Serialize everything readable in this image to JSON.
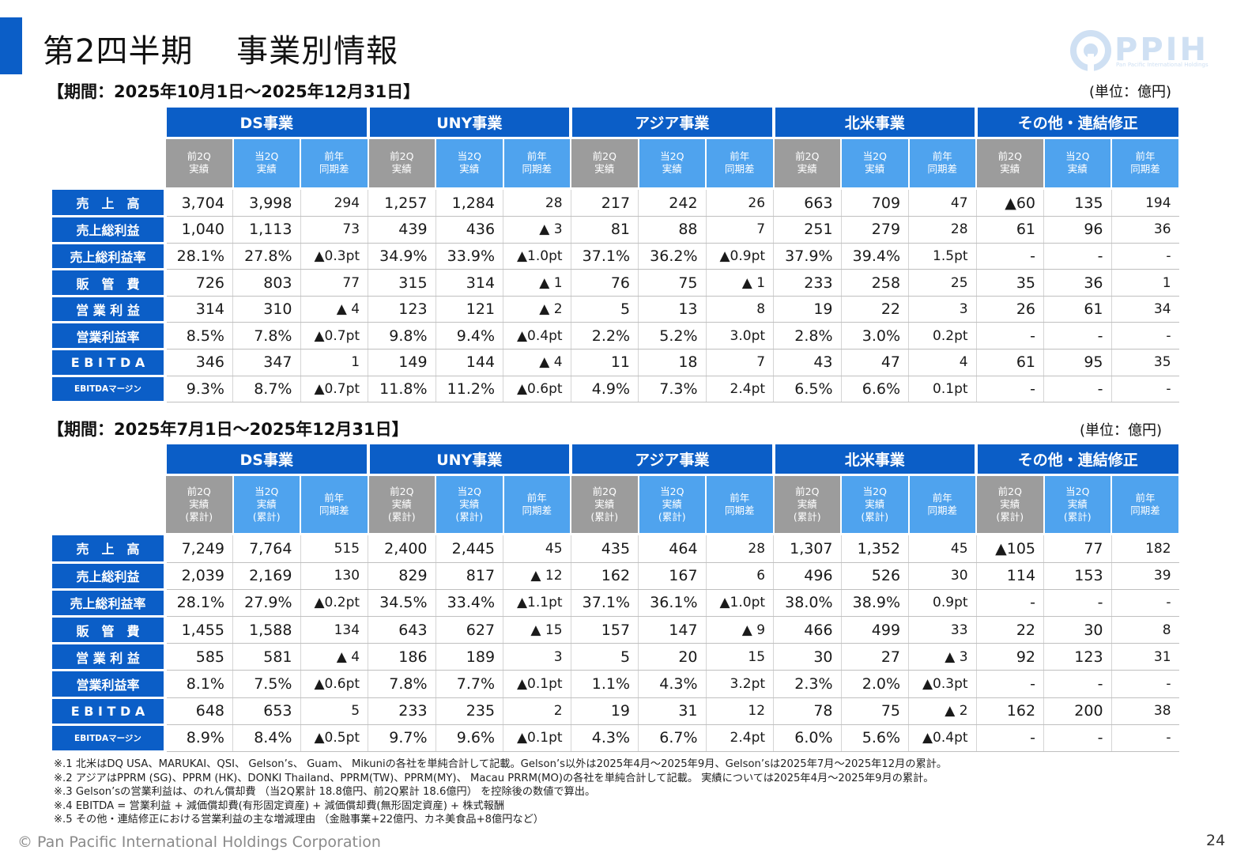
{
  "title": "第2四半期　 事業別情報",
  "logo": {
    "text": "PPIH",
    "sub": "Pan Pacific International Holdings"
  },
  "colors": {
    "accent": "#0b5ec7",
    "prev_header": "#9c9c9c",
    "curr_header": "#4fa3ee"
  },
  "segments": [
    "DS事業",
    "UNY事業",
    "アジア事業",
    "北米事業",
    "その他・連結修正"
  ],
  "tables": [
    {
      "period": "【期間：2025年10月1日～2025年12月31日】",
      "unit": "(単位：億円)",
      "subheaders": [
        "前2Q\n実績",
        "当2Q\n実績",
        "前年\n同期差"
      ],
      "rows": [
        {
          "label": "売　上　高",
          "small": false,
          "values": [
            "3,704",
            "3,998",
            "294",
            "1,257",
            "1,284",
            "28",
            "217",
            "242",
            "26",
            "663",
            "709",
            "47",
            "▲60",
            "135",
            "194"
          ]
        },
        {
          "label": "売上総利益",
          "small": false,
          "values": [
            "1,040",
            "1,113",
            "73",
            "439",
            "436",
            "▲ 3",
            "81",
            "88",
            "7",
            "251",
            "279",
            "28",
            "61",
            "96",
            "36"
          ]
        },
        {
          "label": "売上総利益率",
          "small": false,
          "values": [
            "28.1%",
            "27.8%",
            "▲0.3pt",
            "34.9%",
            "33.9%",
            "▲1.0pt",
            "37.1%",
            "36.2%",
            "▲0.9pt",
            "37.9%",
            "39.4%",
            "1.5pt",
            "-",
            "-",
            "-"
          ]
        },
        {
          "label": "販　管　費",
          "small": false,
          "values": [
            "726",
            "803",
            "77",
            "315",
            "314",
            "▲ 1",
            "76",
            "75",
            "▲ 1",
            "233",
            "258",
            "25",
            "35",
            "36",
            "1"
          ]
        },
        {
          "label": "営 業 利 益",
          "small": false,
          "values": [
            "314",
            "310",
            "▲ 4",
            "123",
            "121",
            "▲ 2",
            "5",
            "13",
            "8",
            "19",
            "22",
            "3",
            "26",
            "61",
            "34"
          ]
        },
        {
          "label": "営業利益率",
          "small": false,
          "values": [
            "8.5%",
            "7.8%",
            "▲0.7pt",
            "9.8%",
            "9.4%",
            "▲0.4pt",
            "2.2%",
            "5.2%",
            "3.0pt",
            "2.8%",
            "3.0%",
            "0.2pt",
            "-",
            "-",
            "-"
          ]
        },
        {
          "label": "E B I T D A",
          "small": false,
          "values": [
            "346",
            "347",
            "1",
            "149",
            "144",
            "▲ 4",
            "11",
            "18",
            "7",
            "43",
            "47",
            "4",
            "61",
            "95",
            "35"
          ]
        },
        {
          "label": "EBITDAマージン",
          "small": true,
          "values": [
            "9.3%",
            "8.7%",
            "▲0.7pt",
            "11.8%",
            "11.2%",
            "▲0.6pt",
            "4.9%",
            "7.3%",
            "2.4pt",
            "6.5%",
            "6.6%",
            "0.1pt",
            "-",
            "-",
            "-"
          ]
        }
      ]
    },
    {
      "period": "【期間：2025年7月1日～2025年12月31日】",
      "unit": "(単位：億円)",
      "subheaders": [
        "前2Q\n実績\n(累計)",
        "当2Q\n実績\n(累計)",
        "前年\n同期差"
      ],
      "rows": [
        {
          "label": "売　上　高",
          "small": false,
          "values": [
            "7,249",
            "7,764",
            "515",
            "2,400",
            "2,445",
            "45",
            "435",
            "464",
            "28",
            "1,307",
            "1,352",
            "45",
            "▲105",
            "77",
            "182"
          ]
        },
        {
          "label": "売上総利益",
          "small": false,
          "values": [
            "2,039",
            "2,169",
            "130",
            "829",
            "817",
            "▲ 12",
            "162",
            "167",
            "6",
            "496",
            "526",
            "30",
            "114",
            "153",
            "39"
          ]
        },
        {
          "label": "売上総利益率",
          "small": false,
          "values": [
            "28.1%",
            "27.9%",
            "▲0.2pt",
            "34.5%",
            "33.4%",
            "▲1.1pt",
            "37.1%",
            "36.1%",
            "▲1.0pt",
            "38.0%",
            "38.9%",
            "0.9pt",
            "-",
            "-",
            "-"
          ]
        },
        {
          "label": "販　管　費",
          "small": false,
          "values": [
            "1,455",
            "1,588",
            "134",
            "643",
            "627",
            "▲ 15",
            "157",
            "147",
            "▲ 9",
            "466",
            "499",
            "33",
            "22",
            "30",
            "8"
          ]
        },
        {
          "label": "営 業 利 益",
          "small": false,
          "values": [
            "585",
            "581",
            "▲ 4",
            "186",
            "189",
            "3",
            "5",
            "20",
            "15",
            "30",
            "27",
            "▲ 3",
            "92",
            "123",
            "31"
          ]
        },
        {
          "label": "営業利益率",
          "small": false,
          "values": [
            "8.1%",
            "7.5%",
            "▲0.6pt",
            "7.8%",
            "7.7%",
            "▲0.1pt",
            "1.1%",
            "4.3%",
            "3.2pt",
            "2.3%",
            "2.0%",
            "▲0.3pt",
            "-",
            "-",
            "-"
          ]
        },
        {
          "label": "E B I T D A",
          "small": false,
          "values": [
            "648",
            "653",
            "5",
            "233",
            "235",
            "2",
            "19",
            "31",
            "12",
            "78",
            "75",
            "▲ 2",
            "162",
            "200",
            "38"
          ]
        },
        {
          "label": "EBITDAマージン",
          "small": true,
          "values": [
            "8.9%",
            "8.4%",
            "▲0.5pt",
            "9.7%",
            "9.6%",
            "▲0.1pt",
            "4.3%",
            "6.7%",
            "2.4pt",
            "6.0%",
            "5.6%",
            "▲0.4pt",
            "-",
            "-",
            "-"
          ]
        }
      ]
    }
  ],
  "notes": [
    "※.1  北米はDQ USA、MARUKAI、QSI、 Gelson’s、 Guam、 Mikuniの各社を単純合計して記載。Gelson’s以外は2025年4月～2025年9月、Gelson’sは2025年7月～2025年12月の累計。",
    "※.2  アジアはPPRM (SG)、PPRM (HK)、DONKI Thailand、PPRM(TW)、PPRM(MY)、 Macau PRRM(MO)の各社を単純合計して記載。 実績については2025年4月～2025年9月の累計。",
    "※.3  Gelson’sの営業利益は、のれん償却費 （当2Q累計 18.8億円、前2Q累計 18.6億円） を控除後の数値で算出。",
    "※.4  EBITDA = 営業利益 + 減価償却費(有形固定資産) + 減価償却費(無形固定資産) + 株式報酬",
    "※.5  その他・連結修正における営業利益の主な増減理由 （金融事業+22億円、カネ美食品+8億円など）"
  ],
  "copyright": "© Pan Pacific International Holdings Corporation",
  "page_number": "24"
}
